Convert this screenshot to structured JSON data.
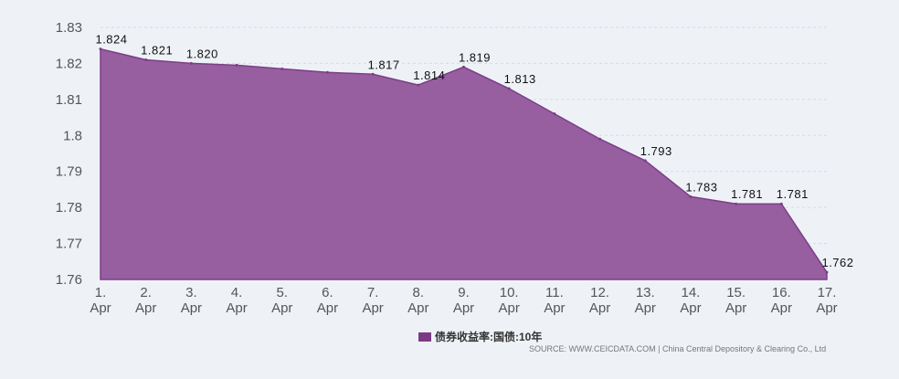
{
  "chart_data": {
    "type": "area",
    "x": [
      "1. Apr",
      "2. Apr",
      "3. Apr",
      "4. Apr",
      "5. Apr",
      "6. Apr",
      "7. Apr",
      "8. Apr",
      "9. Apr",
      "10. Apr",
      "11. Apr",
      "12. Apr",
      "13. Apr",
      "14. Apr",
      "15. Apr",
      "16. Apr",
      "17. Apr"
    ],
    "x_label_lines": [
      [
        "1.",
        "Apr"
      ],
      [
        "2.",
        "Apr"
      ],
      [
        "3.",
        "Apr"
      ],
      [
        "4.",
        "Apr"
      ],
      [
        "5.",
        "Apr"
      ],
      [
        "6.",
        "Apr"
      ],
      [
        "7.",
        "Apr"
      ],
      [
        "8.",
        "Apr"
      ],
      [
        "9.",
        "Apr"
      ],
      [
        "10.",
        "Apr"
      ],
      [
        "11.",
        "Apr"
      ],
      [
        "12.",
        "Apr"
      ],
      [
        "13.",
        "Apr"
      ],
      [
        "14.",
        "Apr"
      ],
      [
        "15.",
        "Apr"
      ],
      [
        "16.",
        "Apr"
      ],
      [
        "17.",
        "Apr"
      ]
    ],
    "series": [
      {
        "name": "债券收益率:国债:10年",
        "values": [
          1.824,
          1.821,
          1.82,
          1.8195,
          1.8185,
          1.8175,
          1.817,
          1.814,
          1.819,
          1.813,
          1.806,
          1.799,
          1.793,
          1.783,
          1.781,
          1.781,
          1.762
        ],
        "labels": [
          "1.824",
          "1.821",
          "1.820",
          null,
          null,
          null,
          "1.817",
          "1.814",
          "1.819",
          "1.813",
          null,
          null,
          "1.793",
          "1.783",
          "1.781",
          "1.781",
          "1.762"
        ]
      }
    ],
    "ylim": [
      1.76,
      1.83
    ],
    "yticks": [
      "1.76",
      "1.77",
      "1.78",
      "1.79",
      "1.8",
      "1.81",
      "1.82",
      "1.83"
    ],
    "grid": true,
    "legend_position": "bottom",
    "colors": {
      "fill": "#975ea0",
      "stroke": "#7b3f86",
      "legend": "#7b3a86",
      "grid": "#d5dbe3"
    }
  },
  "source_text": "SOURCE: WWW.CEICDATA.COM | China Central Depository & Clearing Co., Ltd"
}
